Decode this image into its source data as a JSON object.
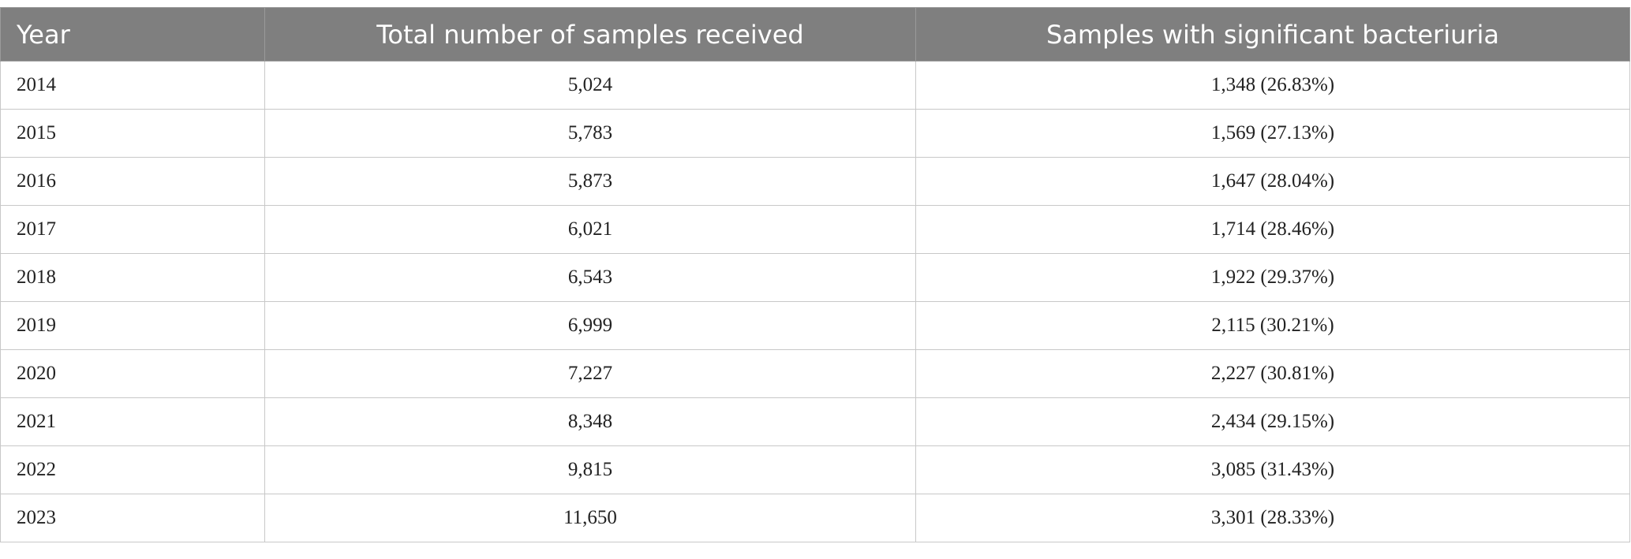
{
  "table": {
    "header": [
      "Year",
      "Total number of samples received",
      "Samples with significant bacteriuria"
    ],
    "rows": [
      [
        "2014",
        "5,024",
        "1,348 (26.83%)"
      ],
      [
        "2015",
        "5,783",
        "1,569 (27.13%)"
      ],
      [
        "2016",
        "5,873",
        "1,647 (28.04%)"
      ],
      [
        "2017",
        "6,021",
        "1,714 (28.46%)"
      ],
      [
        "2018",
        "6,543",
        "1,922 (29.37%)"
      ],
      [
        "2019",
        "6,999",
        "2,115 (30.21%)"
      ],
      [
        "2020",
        "7,227",
        "2,227 (30.81%)"
      ],
      [
        "2021",
        "8,348",
        "2,434 (29.15%)"
      ],
      [
        "2022",
        "9,815",
        "3,085 (31.43%)"
      ],
      [
        "2023",
        "11,650",
        "3,301 (28.33%)"
      ]
    ]
  }
}
